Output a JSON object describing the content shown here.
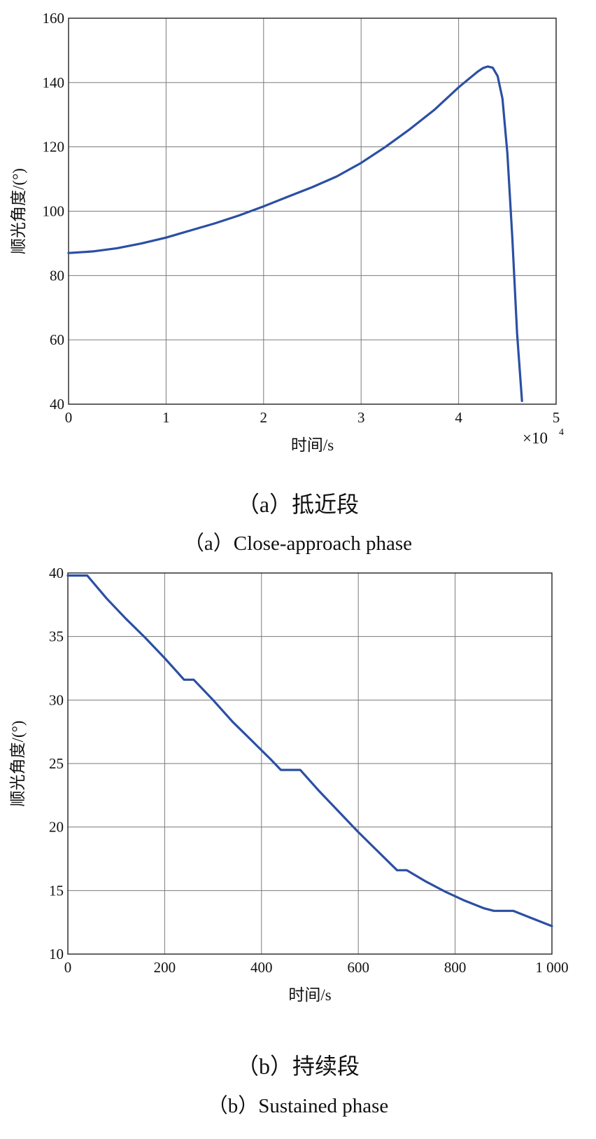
{
  "chart_data": [
    {
      "type": "line",
      "title": "",
      "xlabel": "时间/s",
      "ylabel": "顺光角度/(°)",
      "x_multiplier": "×10",
      "x_multiplier_exp": "4",
      "xlim": [
        0,
        5
      ],
      "ylim": [
        40,
        160
      ],
      "xticks": [
        0,
        1,
        2,
        3,
        4,
        5
      ],
      "yticks": [
        40,
        60,
        80,
        100,
        120,
        140,
        160
      ],
      "xtick_labels": [
        "0",
        "1",
        "2",
        "3",
        "4",
        "5"
      ],
      "ytick_labels": [
        "40",
        "60",
        "80",
        "100",
        "120",
        "140",
        "160"
      ],
      "grid": true,
      "line_color": "#2b4fa3",
      "series": [
        {
          "x": [
            0,
            0.25,
            0.5,
            0.75,
            1.0,
            1.25,
            1.5,
            1.75,
            2.0,
            2.25,
            2.5,
            2.75,
            3.0,
            3.25,
            3.5,
            3.75,
            4.0,
            4.1,
            4.2,
            4.25,
            4.3,
            4.35,
            4.4,
            4.45,
            4.5,
            4.55,
            4.6,
            4.65
          ],
          "y": [
            87,
            87.5,
            88.5,
            90,
            91.8,
            94,
            96.2,
            98.7,
            101.5,
            104.5,
            107.5,
            110.8,
            115,
            120,
            125.5,
            131.5,
            138.5,
            141,
            143.5,
            144.5,
            145,
            144.6,
            142,
            135,
            118,
            92,
            62,
            41
          ]
        }
      ],
      "caption_cn": "（a）抵近段",
      "caption_en": "（a）Close-approach phase"
    },
    {
      "type": "line",
      "title": "",
      "xlabel": "时间/s",
      "ylabel": "顺光角度/(°)",
      "xlim": [
        0,
        1000
      ],
      "ylim": [
        10,
        40
      ],
      "xticks": [
        0,
        200,
        400,
        600,
        800,
        1000
      ],
      "yticks": [
        10,
        15,
        20,
        25,
        30,
        35,
        40
      ],
      "xtick_labels": [
        "0",
        "200",
        "400",
        "600",
        "800",
        "1 000"
      ],
      "ytick_labels": [
        "10",
        "15",
        "20",
        "25",
        "30",
        "35",
        "40"
      ],
      "grid": true,
      "line_color": "#2b4fa3",
      "series": [
        {
          "x": [
            0,
            40,
            80,
            120,
            160,
            200,
            240,
            260,
            300,
            340,
            380,
            420,
            440,
            480,
            520,
            560,
            600,
            640,
            680,
            700,
            740,
            780,
            820,
            860,
            880,
            920,
            960,
            1000
          ],
          "y": [
            39.8,
            39.8,
            38.0,
            36.4,
            34.9,
            33.3,
            31.6,
            31.6,
            30.0,
            28.3,
            26.8,
            25.3,
            24.5,
            24.5,
            22.8,
            21.2,
            19.6,
            18.1,
            16.6,
            16.6,
            15.7,
            14.9,
            14.2,
            13.6,
            13.4,
            13.4,
            12.8,
            12.2
          ]
        }
      ],
      "caption_cn": "（b）持续段",
      "caption_en": "（b）Sustained phase"
    }
  ]
}
